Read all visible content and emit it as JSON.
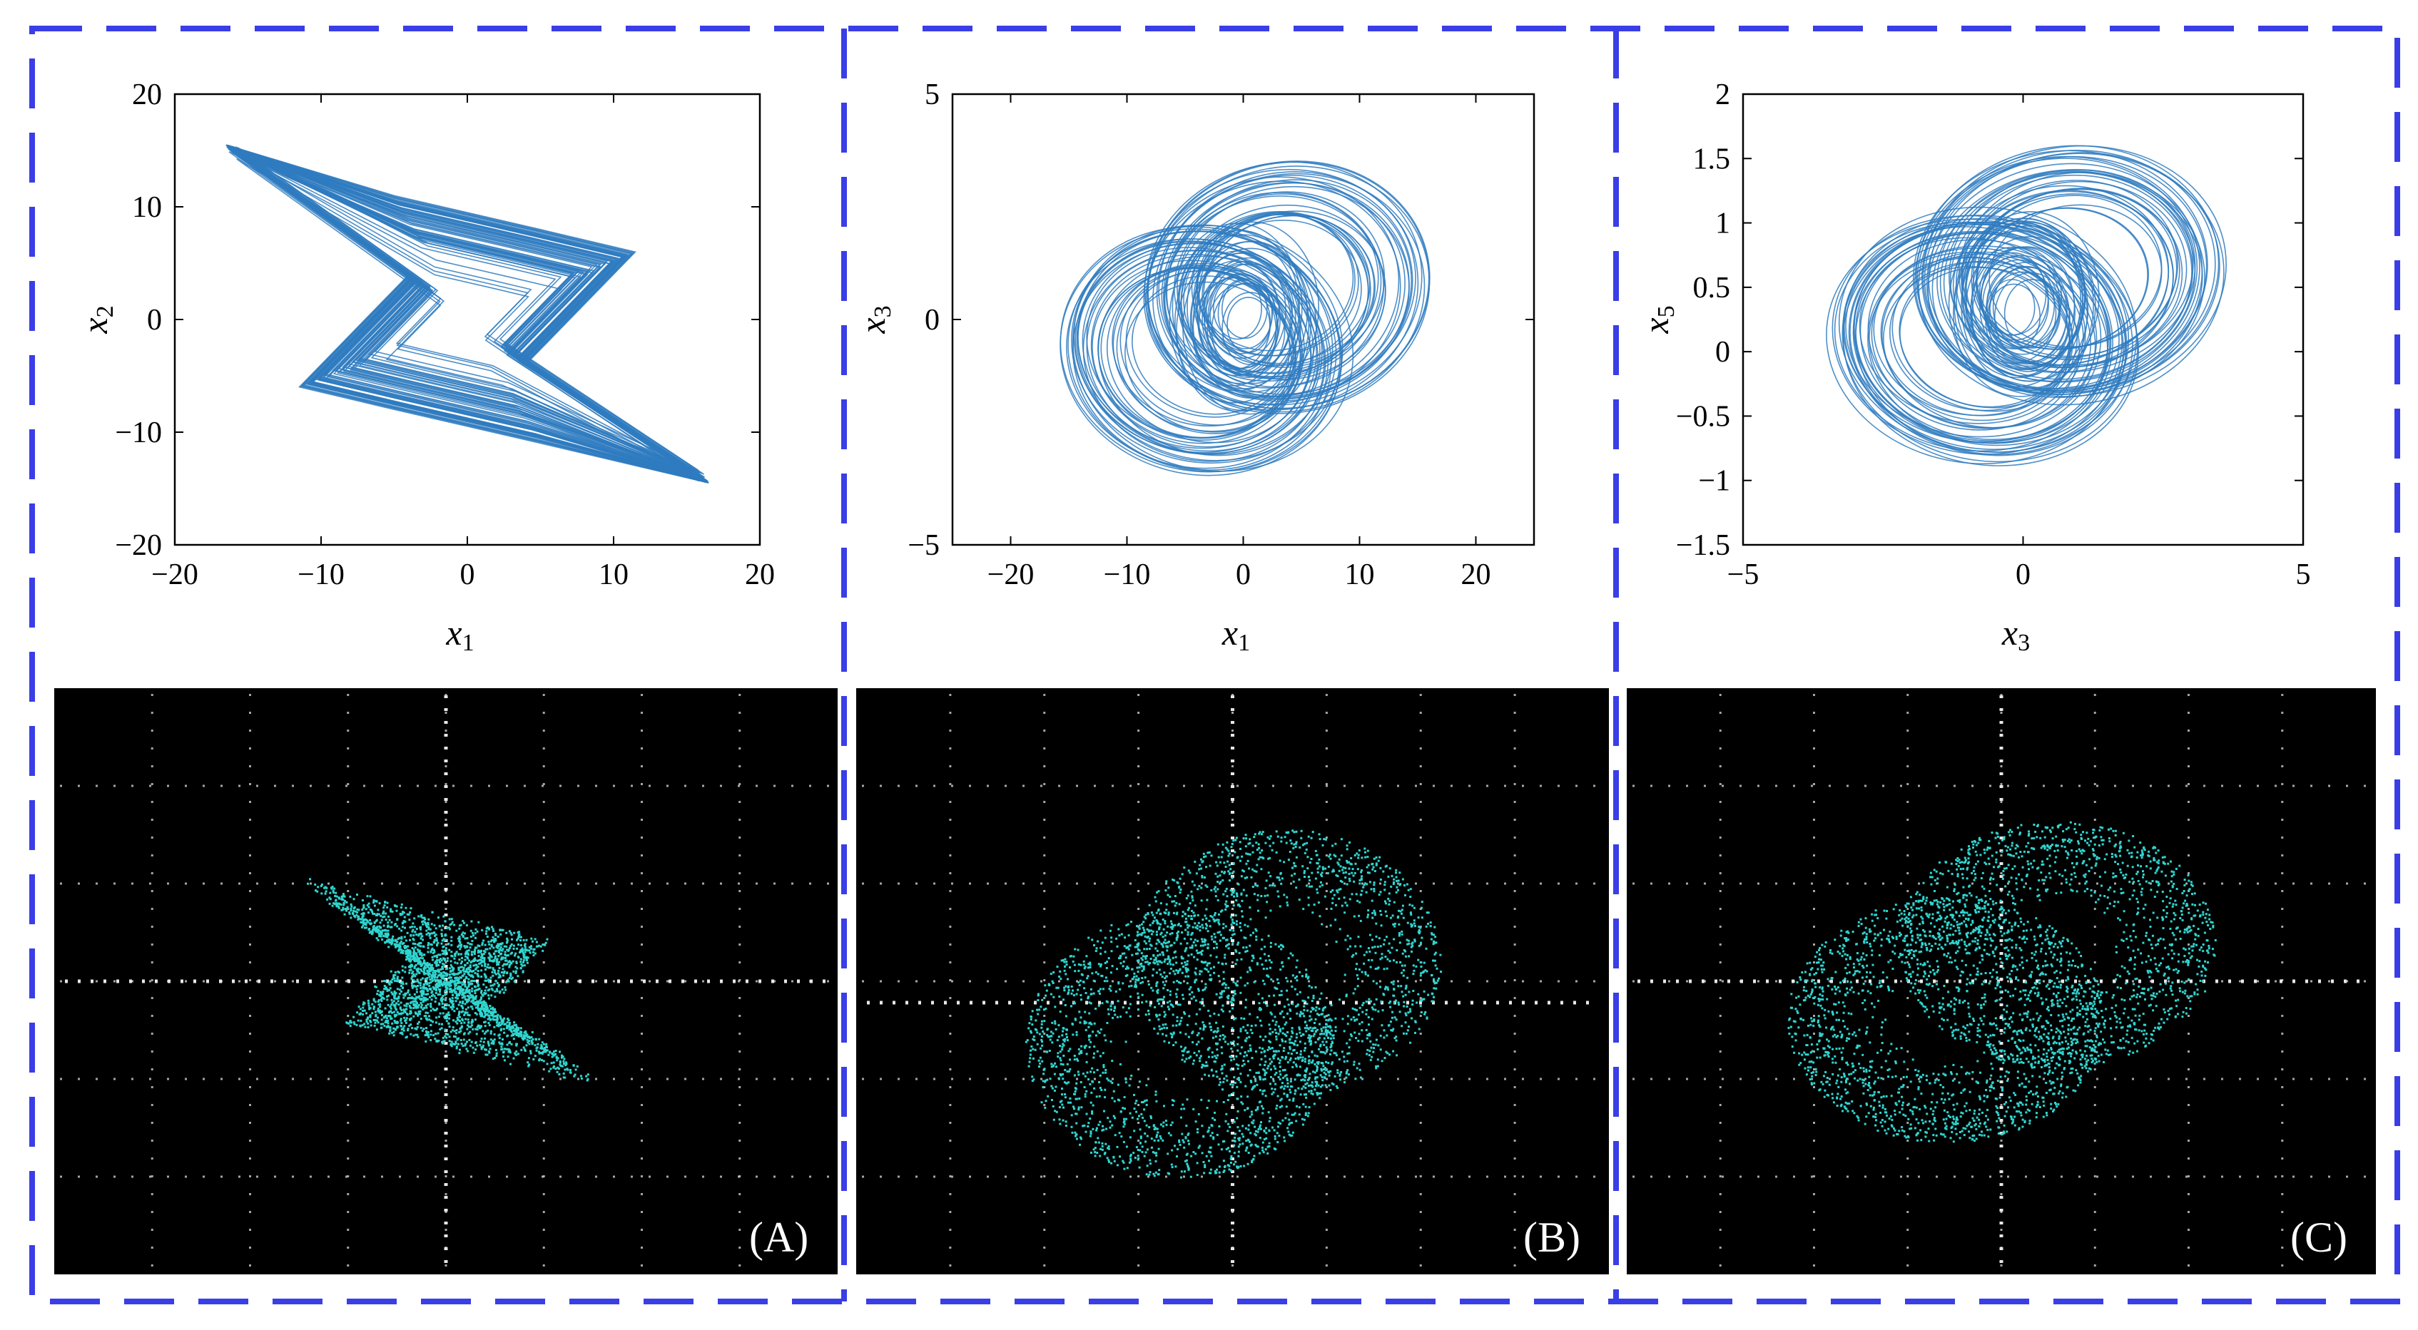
{
  "figure": {
    "border_color": "#3a3ee6",
    "plot_line_color": "#2f7bbf",
    "scope_trace_color": "#2fd6d0",
    "scope_grid_color": "#cfcfcf",
    "scope_background": "#000000"
  },
  "chart_data": [
    {
      "type": "line",
      "subtype": "phase-portrait",
      "xlabel": {
        "main": "x",
        "sub": "1"
      },
      "ylabel": {
        "main": "x",
        "sub": "2"
      },
      "xlim": [
        -20,
        20
      ],
      "ylim": [
        -20,
        20
      ],
      "xticks": [
        -20,
        -10,
        0,
        10,
        20
      ],
      "yticks": [
        -20,
        -10,
        0,
        10,
        20
      ],
      "xtick_labels": [
        "−20",
        "−10",
        "0",
        "10",
        "20"
      ],
      "ytick_labels": [
        "−20",
        "−10",
        "0",
        "10",
        "20"
      ],
      "attractor_outline": [
        [
          -16.5,
          15.5
        ],
        [
          -5,
          11
        ],
        [
          5,
          8
        ],
        [
          11.5,
          6
        ],
        [
          4,
          -4
        ],
        [
          16.5,
          -14.5
        ],
        [
          5,
          -11
        ],
        [
          -5,
          -8
        ],
        [
          -11.5,
          -6
        ],
        [
          -4,
          4
        ],
        [
          -16.5,
          15.5
        ]
      ],
      "center_point": [
        0,
        0
      ],
      "hook_x_extent": 16.5,
      "hook_y_extent": 15.5
    },
    {
      "type": "line",
      "subtype": "phase-portrait",
      "xlabel": {
        "main": "x",
        "sub": "1"
      },
      "ylabel": {
        "main": "x",
        "sub": "3"
      },
      "xlim": [
        -25,
        25
      ],
      "ylim": [
        -5,
        5
      ],
      "xticks": [
        -20,
        -10,
        0,
        10,
        20
      ],
      "yticks": [
        -5,
        0,
        5
      ],
      "xtick_labels": [
        "−20",
        "−10",
        "0",
        "10",
        "20"
      ],
      "ytick_labels": [
        "−5",
        "0",
        "5"
      ],
      "attractor_x_range": [
        -17,
        17
      ],
      "attractor_y_range": [
        -3.8,
        3.8
      ],
      "inner_core_radius": [
        6,
        2
      ]
    },
    {
      "type": "line",
      "subtype": "phase-portrait",
      "xlabel": {
        "main": "x",
        "sub": "3"
      },
      "ylabel": {
        "main": "x",
        "sub": "5"
      },
      "xlim": [
        -5,
        5
      ],
      "ylim": [
        -1.5,
        2
      ],
      "xticks": [
        -5,
        0,
        5
      ],
      "yticks": [
        -1.5,
        -1,
        -0.5,
        0,
        0.5,
        1,
        1.5,
        2
      ],
      "xtick_labels": [
        "−5",
        "0",
        "5"
      ],
      "ytick_labels": [
        "−1.5",
        "−1",
        "−0.5",
        "0",
        "0.5",
        "1",
        "1.5",
        "2"
      ],
      "attractor_x_range": [
        -3.8,
        3.8
      ],
      "attractor_y_range": [
        -1.0,
        1.7
      ],
      "inner_core_radius": [
        1.3,
        0.7
      ]
    }
  ],
  "oscilloscope_panels": [
    {
      "letter": "(A)"
    },
    {
      "letter": "(B)"
    },
    {
      "letter": "(C)"
    }
  ]
}
